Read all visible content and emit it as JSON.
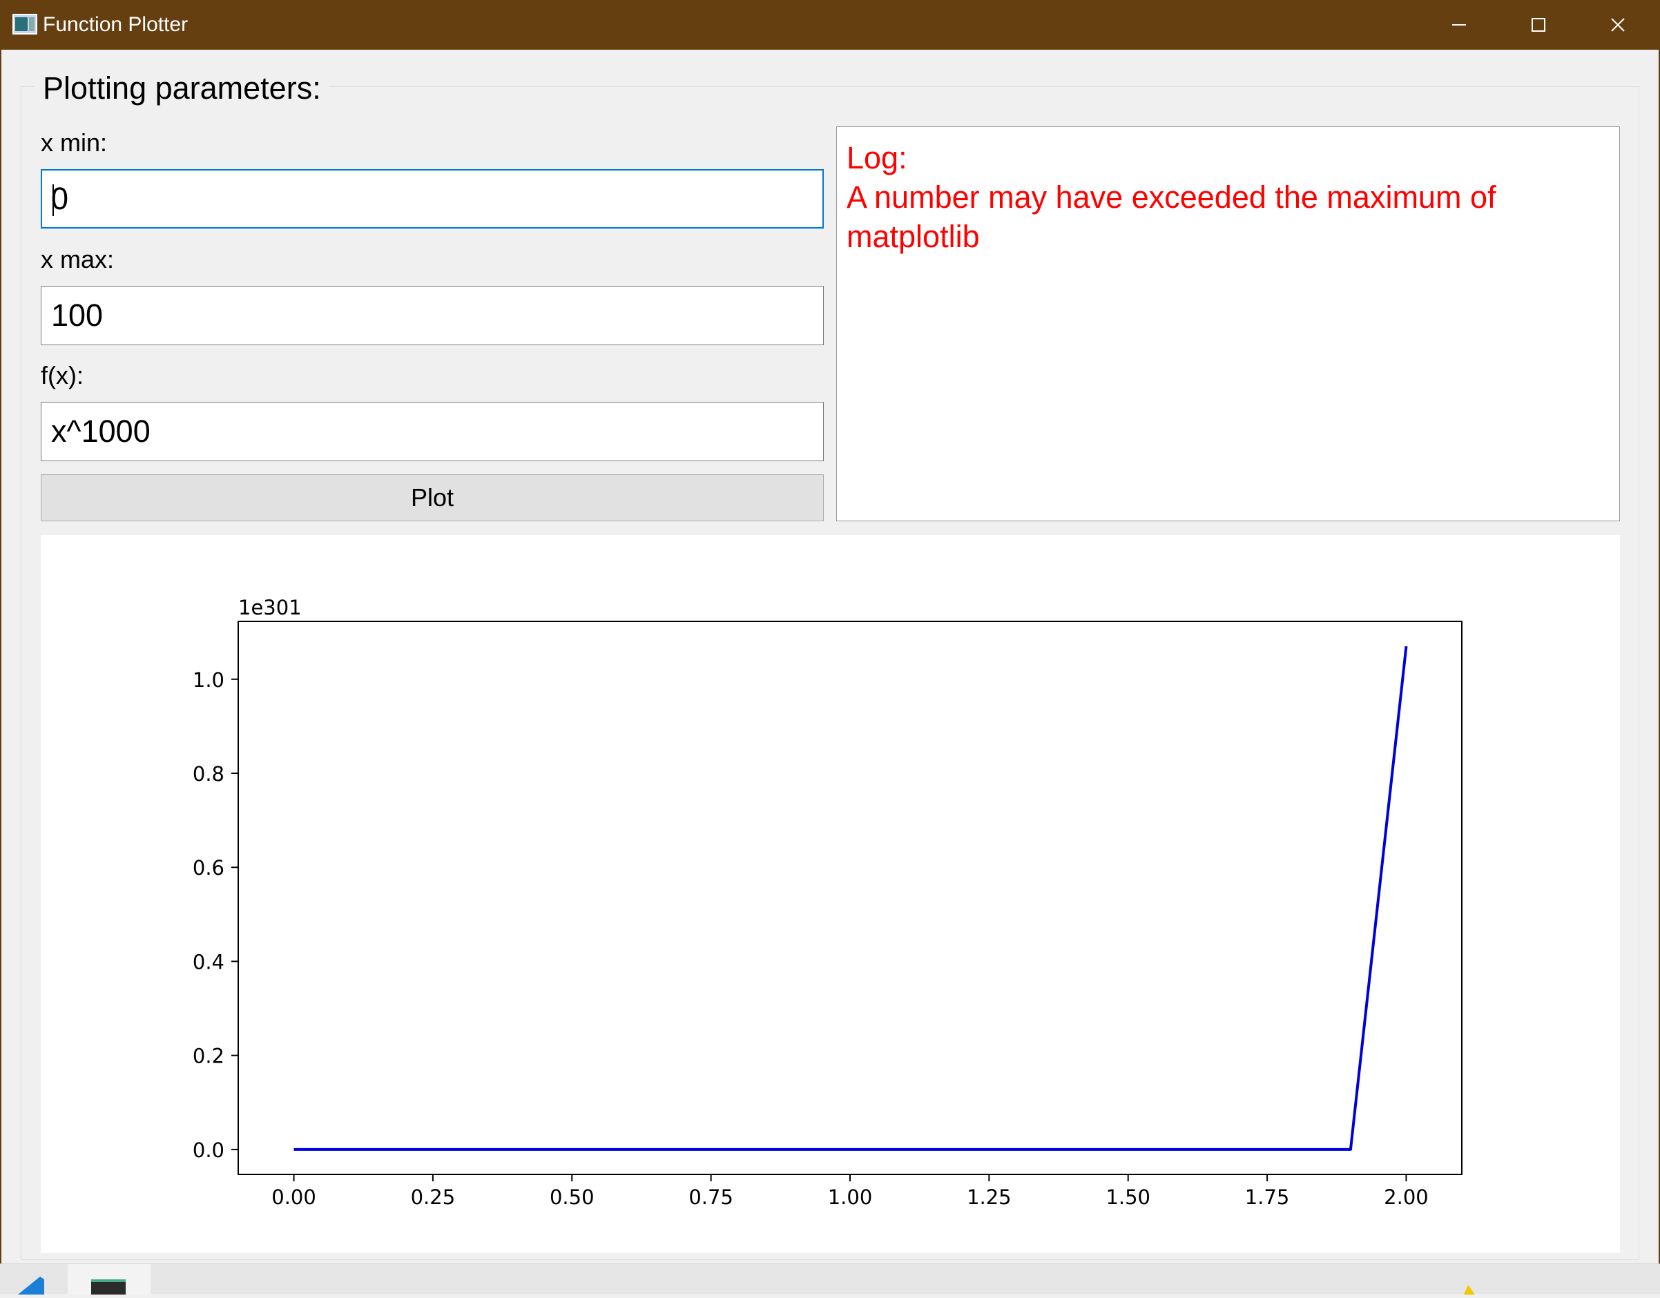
{
  "window": {
    "title": "Function Plotter",
    "icons": {
      "app": "app-window-icon",
      "minimize": "minimize-icon",
      "maximize": "maximize-icon",
      "close": "close-icon"
    },
    "colors": {
      "titlebar": "#653f10",
      "log_text": "#ff0000",
      "plot_line": "#0000dd"
    }
  },
  "params": {
    "group_title": "Plotting parameters:",
    "xmin_label": "x min:",
    "xmin_value": "0",
    "xmax_label": "x max:",
    "xmax_value": "100",
    "fx_label": "f(x):",
    "fx_value": "x^1000",
    "plot_button": "Plot"
  },
  "log": {
    "title": "Log:",
    "message": "A number may have exceeded the maximum of matplotlib"
  },
  "chart_data": {
    "type": "line",
    "title": "",
    "xlabel": "",
    "ylabel": "",
    "offset_text": "1e301",
    "x": [
      0.0,
      0.1,
      0.2,
      0.3,
      0.4,
      0.5,
      0.6,
      0.7,
      0.8,
      0.9,
      1.0,
      1.1,
      1.2,
      1.3,
      1.4,
      1.5,
      1.6,
      1.7,
      1.8,
      1.9,
      2.0
    ],
    "y": [
      0,
      0,
      0,
      0,
      0,
      0,
      0,
      0,
      0,
      0,
      0,
      0,
      0,
      0,
      0,
      0,
      0,
      0,
      0,
      0,
      1.07
    ],
    "xlim": [
      -0.1,
      2.1
    ],
    "ylim": [
      -0.053,
      1.123
    ],
    "xticks": [
      0.0,
      0.25,
      0.5,
      0.75,
      1.0,
      1.25,
      1.5,
      1.75,
      2.0
    ],
    "xtick_labels": [
      "0.00",
      "0.25",
      "0.50",
      "0.75",
      "1.00",
      "1.25",
      "1.50",
      "1.75",
      "2.00"
    ],
    "yticks": [
      0.0,
      0.2,
      0.4,
      0.6,
      0.8,
      1.0
    ],
    "ytick_labels": [
      "0.0",
      "0.2",
      "0.4",
      "0.6",
      "0.8",
      "1.0"
    ],
    "grid": false,
    "color": "#0000dd"
  }
}
